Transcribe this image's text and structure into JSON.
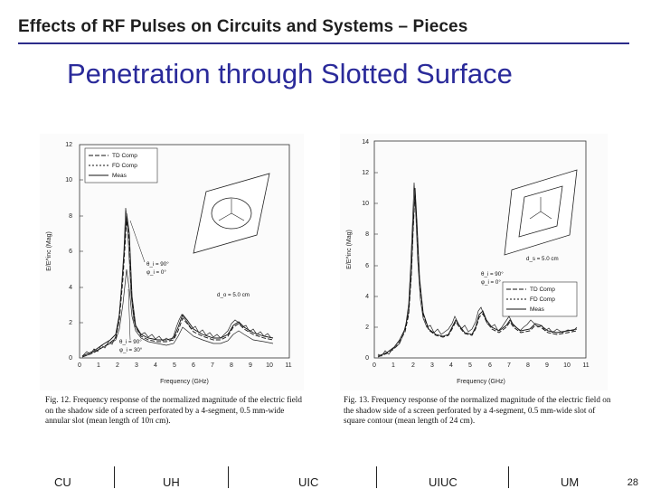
{
  "header": {
    "title": "Effects of RF Pulses on Circuits and Systems – Pieces"
  },
  "slide": {
    "title": "Penetration through Slotted Surface"
  },
  "figures": [
    {
      "ylabel": "E/E^inc (Mag)",
      "xlabel": "Frequency (GHz)",
      "yticks": [
        "0",
        "2",
        "4",
        "6",
        "8",
        "10",
        "12"
      ],
      "xticks": [
        "0",
        "1",
        "2",
        "3",
        "4",
        "5",
        "6",
        "7",
        "8",
        "9",
        "10",
        "11"
      ],
      "legend": [
        "TD Comp",
        "FD Comp",
        "Meas"
      ],
      "annot_top": [
        "θ_i = 90°",
        "φ_i = 0°"
      ],
      "annot_bottom": [
        "θ_i = 90°",
        "φ_i = 30°"
      ],
      "annot_d": "d_o = 5.0 cm",
      "caption": "Fig. 12.   Frequency response of the normalized magnitude of the electric field on the shadow side of a screen perforated by a 4-segment, 0.5 mm-wide annular slot (mean length of 10π cm)."
    },
    {
      "ylabel": "E/E^inc (Mag)",
      "xlabel": "Frequency (GHz)",
      "yticks": [
        "0",
        "2",
        "4",
        "6",
        "8",
        "10",
        "12",
        "14"
      ],
      "xticks": [
        "0",
        "1",
        "2",
        "3",
        "4",
        "5",
        "6",
        "7",
        "8",
        "9",
        "10",
        "11"
      ],
      "legend": [
        "TD Comp",
        "FD Comp",
        "Meas"
      ],
      "annot_angles": [
        "θ_i = 90°",
        "φ_i = 0°"
      ],
      "annot_d": "d_s = 5.0 cm",
      "caption": "Fig. 13.   Frequency response of the normalized magnitude of the electric field on the shadow side of a screen perforated by a 4-segment, 0.5 mm-wide slot of square contour (mean length of 24 cm)."
    }
  ],
  "footer": {
    "items": [
      "CU",
      "UH",
      "UIC",
      "UIUC",
      "UM"
    ],
    "page": "28"
  }
}
